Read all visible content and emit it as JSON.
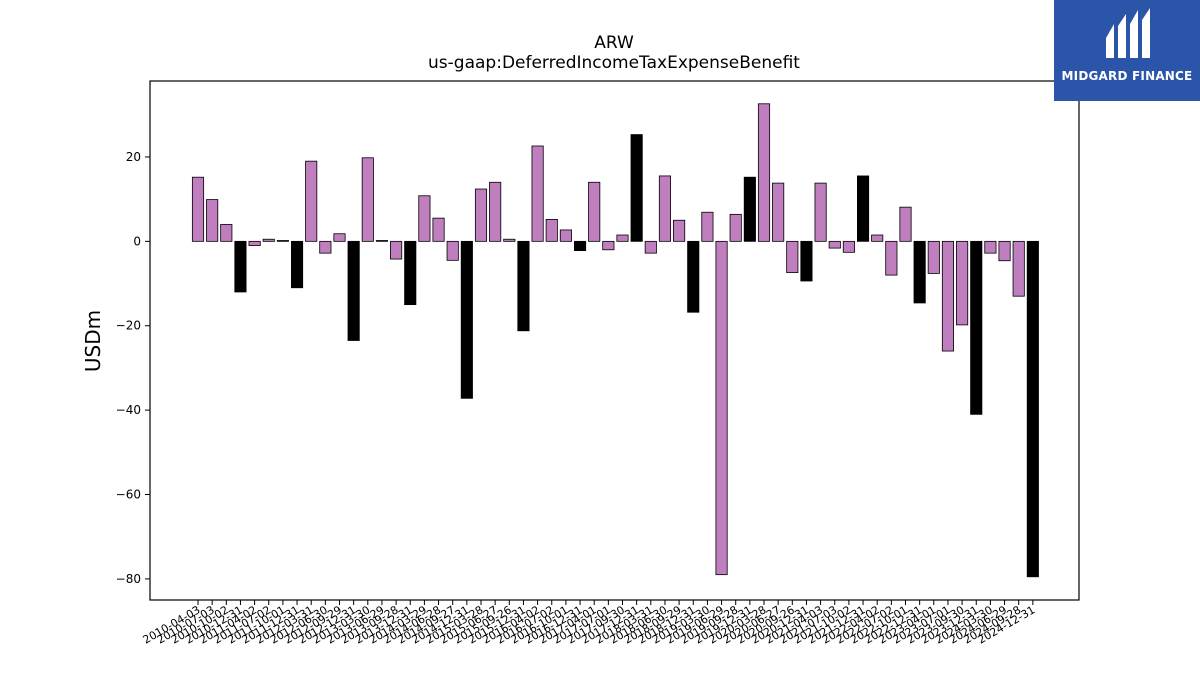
{
  "brand": {
    "name": "MIDGARD FINANCE"
  },
  "chart_data": {
    "type": "bar",
    "title": "ARW",
    "subtitle": "us-gaap:DeferredIncomeTaxExpenseBenefit",
    "ylabel": "USDm",
    "ylim": [
      -85,
      38
    ],
    "yticks": [
      -80,
      -60,
      -40,
      -20,
      0,
      20
    ],
    "colors": {
      "quarter": "#bf7fbf",
      "annual": "#000000"
    },
    "categories": [
      "2010-04-03",
      "2010-07-03",
      "2010-10-02",
      "2010-12-31",
      "2011-04-02",
      "2011-07-02",
      "2011-10-01",
      "2011-12-31",
      "2012-03-31",
      "2012-06-30",
      "2012-09-29",
      "2012-12-31",
      "2013-03-30",
      "2013-06-29",
      "2013-09-28",
      "2013-12-31",
      "2014-03-29",
      "2014-06-28",
      "2014-09-27",
      "2014-12-31",
      "2015-03-28",
      "2015-06-27",
      "2015-09-26",
      "2015-12-31",
      "2016-04-02",
      "2016-07-02",
      "2016-10-01",
      "2016-12-31",
      "2017-04-01",
      "2017-07-01",
      "2017-09-30",
      "2017-12-31",
      "2018-03-31",
      "2018-06-30",
      "2018-09-29",
      "2018-12-31",
      "2019-03-30",
      "2019-06-29",
      "2019-09-28",
      "2019-12-31",
      "2020-03-28",
      "2020-06-27",
      "2020-09-26",
      "2020-12-31",
      "2021-04-03",
      "2021-07-03",
      "2021-10-02",
      "2021-12-31",
      "2022-04-02",
      "2022-07-02",
      "2022-10-01",
      "2022-12-31",
      "2023-04-01",
      "2023-07-01",
      "2023-09-30",
      "2023-12-31",
      "2024-03-30",
      "2024-06-29",
      "2024-09-28",
      "2024-12-31"
    ],
    "values": [
      15.2,
      9.9,
      4.0,
      -12.0,
      -1.0,
      0.5,
      0.2,
      -11.0,
      19.0,
      -2.8,
      1.8,
      -23.5,
      19.8,
      0.2,
      -4.2,
      -15.0,
      10.8,
      5.5,
      -4.5,
      -37.2,
      12.4,
      14.0,
      0.5,
      -21.2,
      22.6,
      5.2,
      2.7,
      -2.2,
      14.0,
      -2.0,
      1.5,
      25.3,
      -2.8,
      15.5,
      5.0,
      -16.8,
      6.9,
      -79.0,
      6.4,
      15.2,
      32.6,
      13.8,
      -7.4,
      -9.4,
      13.8,
      -1.6,
      -2.6,
      15.5,
      1.5,
      -8.0,
      8.1,
      -14.6,
      -7.6,
      -26.0,
      -19.8,
      -41.0,
      -2.8,
      -4.6,
      -13.0,
      -79.5
    ],
    "annual": [
      false,
      false,
      false,
      true,
      false,
      false,
      false,
      true,
      false,
      false,
      false,
      true,
      false,
      false,
      false,
      true,
      false,
      false,
      false,
      true,
      false,
      false,
      false,
      true,
      false,
      false,
      false,
      true,
      false,
      false,
      false,
      true,
      false,
      false,
      false,
      true,
      false,
      false,
      false,
      true,
      false,
      false,
      false,
      true,
      false,
      false,
      false,
      true,
      false,
      false,
      false,
      true,
      false,
      false,
      false,
      true,
      false,
      false,
      false,
      true
    ]
  }
}
